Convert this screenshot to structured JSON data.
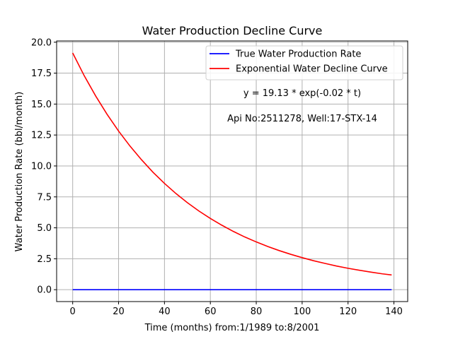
{
  "chart_data": {
    "type": "line",
    "title": "Water Production Decline Curve",
    "xlabel": "Time (months) from:1/1989 to:8/2001",
    "ylabel": "Water Production Rate (bbl/month)",
    "xlim": [
      -7,
      146
    ],
    "ylim": [
      -0.96,
      20.1
    ],
    "xticks": [
      0,
      20,
      40,
      60,
      80,
      100,
      120,
      140
    ],
    "yticks": [
      0.0,
      2.5,
      5.0,
      7.5,
      10.0,
      12.5,
      15.0,
      17.5,
      20.0
    ],
    "xtick_labels": [
      "0",
      "20",
      "40",
      "60",
      "80",
      "100",
      "120",
      "140"
    ],
    "ytick_labels": [
      "0.0",
      "2.5",
      "5.0",
      "7.5",
      "10.0",
      "12.5",
      "15.0",
      "17.5",
      "20.0"
    ],
    "grid": true,
    "legend_position": "top-right",
    "series": [
      {
        "name": "True Water Production Rate",
        "color": "#0000ff",
        "x": [
          0,
          139
        ],
        "y": [
          0,
          0
        ]
      },
      {
        "name": "Exponential Water Decline Curve",
        "color": "#ff0000",
        "x": [
          0,
          5,
          10,
          15,
          20,
          25,
          30,
          35,
          40,
          45,
          50,
          55,
          60,
          65,
          70,
          75,
          80,
          85,
          90,
          95,
          100,
          105,
          110,
          115,
          120,
          125,
          130,
          135,
          139
        ],
        "y": [
          19.13,
          17.3,
          15.66,
          14.17,
          12.82,
          11.6,
          10.5,
          9.49,
          8.59,
          7.77,
          7.03,
          6.36,
          5.76,
          5.21,
          4.71,
          4.26,
          3.86,
          3.49,
          3.16,
          2.86,
          2.59,
          2.34,
          2.12,
          1.91,
          1.73,
          1.57,
          1.42,
          1.28,
          1.19
        ]
      }
    ],
    "annotations": [
      "y = 19.13 * exp(-0.02 * t)",
      "Api No:2511278, Well:17-STX-14"
    ]
  }
}
